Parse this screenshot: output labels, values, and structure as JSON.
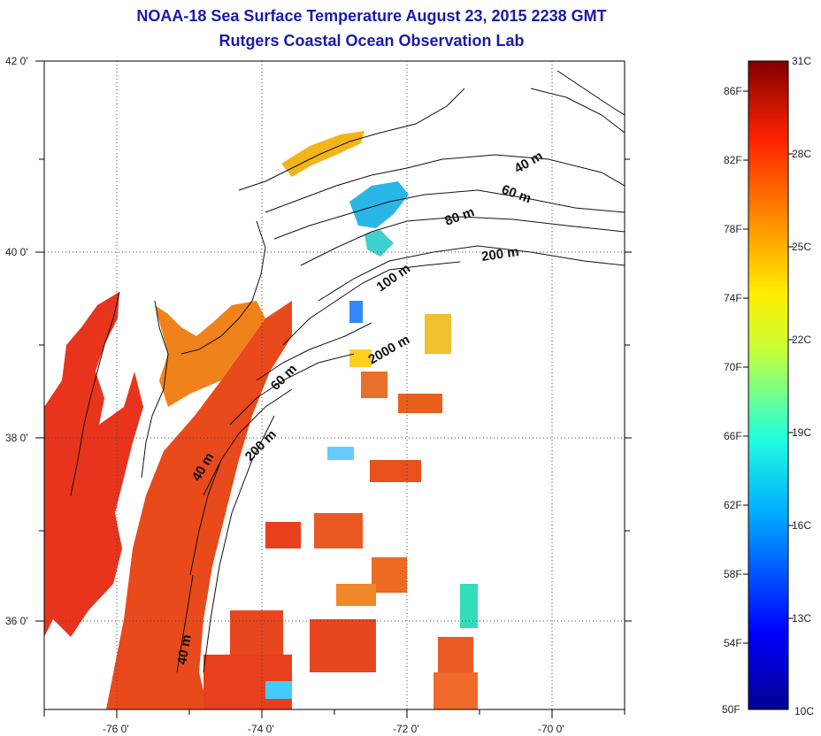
{
  "title_line1": "NOAA-18 Sea Surface Temperature August 23, 2015 2238 GMT",
  "title_line2": "Rutgers Coastal Ocean Observation Lab",
  "axes": {
    "x_ticks": [
      "-76 0'",
      "-74 0'",
      "-72 0'",
      "-70 0'"
    ],
    "y_ticks": [
      "42 0'",
      "40 0'",
      "38 0'",
      "36 0'"
    ]
  },
  "depth_labels": [
    "40 m",
    "60 m",
    "80 m",
    "200 m",
    "100 m",
    "2000 m",
    "60 m",
    "200 m",
    "40 m",
    "40 m"
  ],
  "colorbar": {
    "f_labels": [
      "86F",
      "82F",
      "78F",
      "74F",
      "70F",
      "66F",
      "62F",
      "58F",
      "54F",
      "50F"
    ],
    "c_labels": [
      "31C",
      "28C",
      "25C",
      "22C",
      "19C",
      "16C",
      "13C",
      "10C"
    ]
  },
  "colors": {
    "title": "#1a1aa8",
    "land": "#ffffff",
    "warm": "#e8321e",
    "shelf": "#f07a1c"
  }
}
